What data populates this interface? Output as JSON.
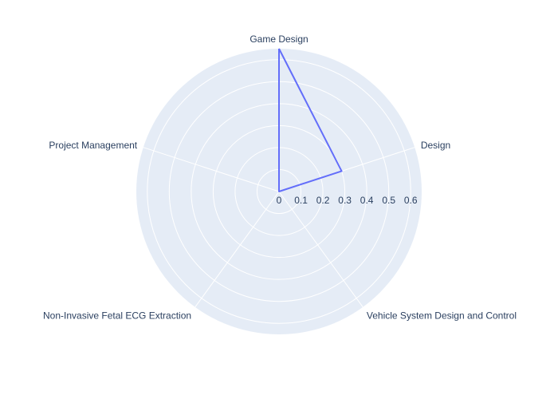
{
  "chart_data": {
    "type": "radar",
    "categories": [
      "Game Design",
      "Design",
      "Vehicle System Design and Control",
      "Non-Invasive Fetal ECG Extraction",
      "Project Management"
    ],
    "series": [
      {
        "values": [
          0.65,
          0.3,
          0,
          0,
          0
        ]
      }
    ],
    "radial_ticks": [
      "0",
      "0.1",
      "0.2",
      "0.3",
      "0.4",
      "0.5",
      "0.6"
    ],
    "radial_range": [
      0,
      0.65
    ],
    "grid": true,
    "colors": {
      "polar_background": "#e5ecf6",
      "grid": "#ffffff",
      "series_line": "#636efa",
      "text": "#2a3f5f"
    }
  }
}
